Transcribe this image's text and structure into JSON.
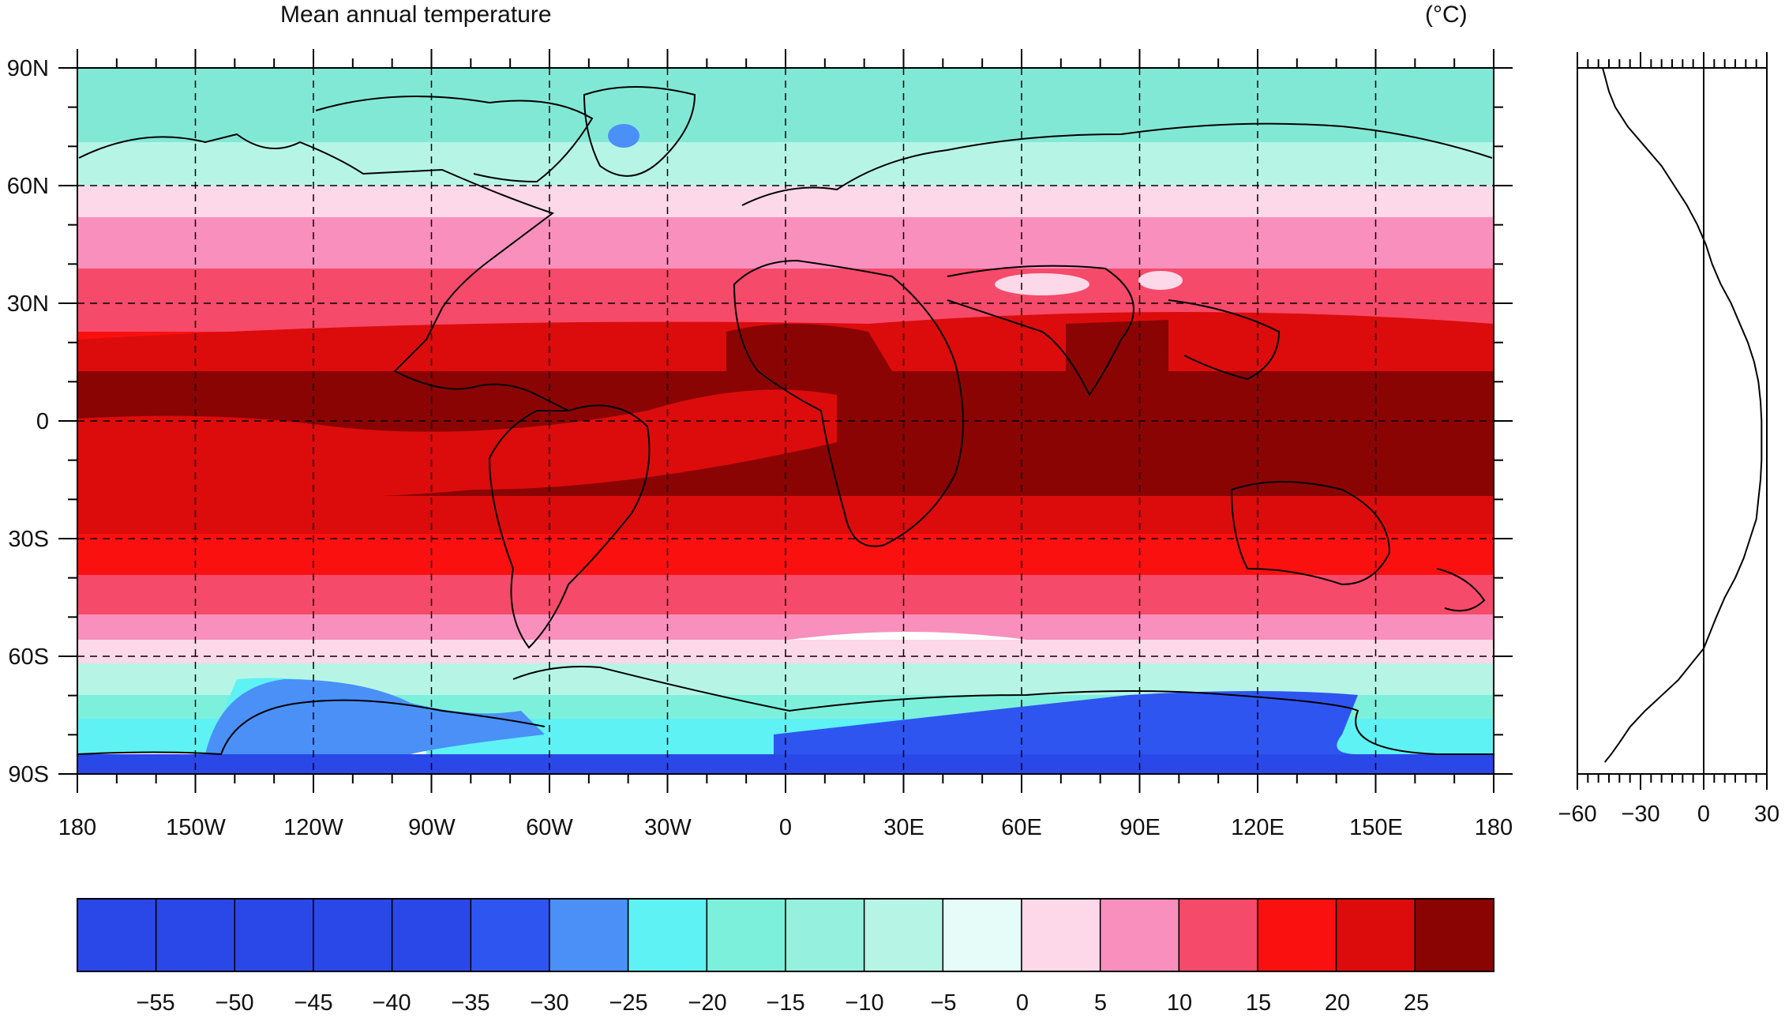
{
  "title": "Mean annual temperature",
  "units": "(°C)",
  "map": {
    "lat_labels": [
      "90N",
      "60N",
      "30N",
      "0",
      "30S",
      "60S",
      "90S"
    ],
    "lon_labels": [
      "180",
      "150W",
      "120W",
      "90W",
      "60W",
      "30W",
      "0",
      "30E",
      "60E",
      "90E",
      "120E",
      "150E",
      "180"
    ]
  },
  "profile": {
    "x_ticks": [
      "−60",
      "−30",
      "0",
      "30"
    ],
    "xlim": [
      -60,
      30
    ]
  },
  "colorbar": {
    "labels": [
      "−55",
      "−50",
      "−45",
      "−40",
      "−35",
      "−30",
      "−25",
      "−20",
      "−15",
      "−10",
      "−5",
      "0",
      "5",
      "10",
      "15",
      "20",
      "25"
    ],
    "colors": [
      "#2a48e8",
      "#2a48e8",
      "#2a48e8",
      "#2a48e8",
      "#2a48e8",
      "#2f55f0",
      "#4a90f7",
      "#5ef2f4",
      "#7df0dc",
      "#95f0dd",
      "#b6f5e6",
      "#e6fcf9",
      "#fcd8e8",
      "#f98fbc",
      "#f54a6a",
      "#fb1010",
      "#dc0c0c",
      "#8b0404"
    ]
  },
  "chart_data": {
    "type": "line",
    "title": "",
    "xlabel": "",
    "ylabel": "",
    "xlim": [
      -60,
      30
    ],
    "ylim": [
      -90,
      90
    ],
    "series": [
      {
        "x": [
          -47,
          -44,
          -40,
          -35,
          -28,
          -20,
          -12,
          -6,
          -3,
          0,
          3,
          6,
          10,
          15,
          19,
          22,
          25,
          26,
          27,
          27.5,
          27.5,
          27,
          26,
          24,
          21,
          17,
          13,
          8,
          4,
          1,
          -3,
          -8,
          -14,
          -20,
          -28,
          -36,
          -42,
          -45,
          -47,
          -48
        ],
        "y": [
          -87,
          -85,
          -82,
          -78,
          -74,
          -70,
          -66,
          -62,
          -60,
          -58,
          -54,
          -50,
          -45,
          -40,
          -35,
          -30,
          -25,
          -20,
          -15,
          -10,
          0,
          5,
          10,
          15,
          20,
          25,
          30,
          35,
          40,
          45,
          50,
          55,
          60,
          65,
          70,
          75,
          80,
          84,
          88,
          90
        ]
      }
    ]
  }
}
